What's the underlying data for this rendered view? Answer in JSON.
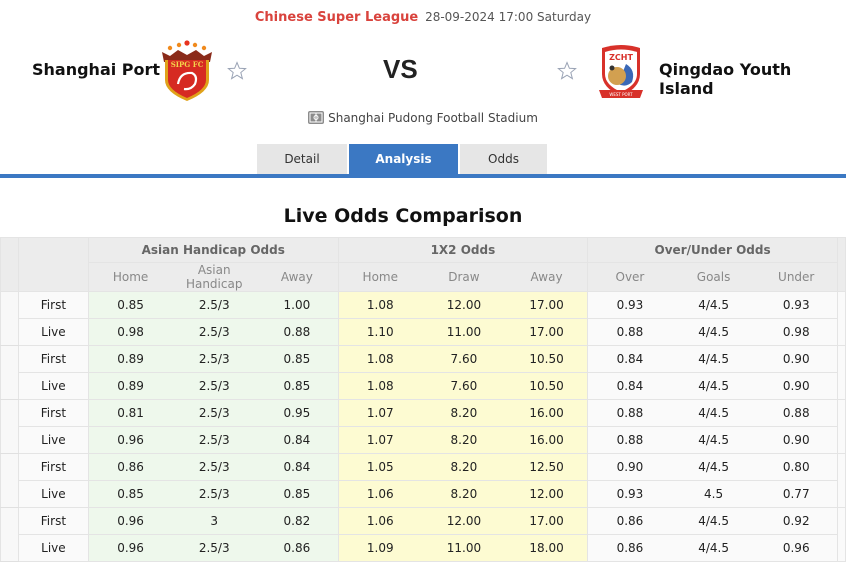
{
  "header": {
    "league": "Chinese Super League",
    "datetime": "28-09-2024 17:00 Saturday",
    "vs": "VS",
    "home_team": "Shanghai Port",
    "away_team": "Qingdao Youth Island",
    "home_logo": "shanghai-port-crest",
    "away_logo": "qingdao-youth-island-crest",
    "favorite_icon": "star-outline-icon",
    "venue_icon": "stadium-icon",
    "venue": "Shanghai Pudong Football Stadium"
  },
  "tabs": [
    {
      "label": "Detail",
      "active": false
    },
    {
      "label": "Analysis",
      "active": true
    },
    {
      "label": "Odds",
      "active": false
    }
  ],
  "colors": {
    "accent": "#3b78c3",
    "league": "#d9433d",
    "handicap_bg": "#eef8ec",
    "x12_bg": "#fdfbd2"
  },
  "odds": {
    "title": "Live Odds Comparison",
    "groups": [
      "Asian Handicap Odds",
      "1X2 Odds",
      "Over/Under Odds"
    ],
    "subheaders": {
      "ah": [
        "Home",
        "Asian Handicap",
        "Away"
      ],
      "x12": [
        "Home",
        "Draw",
        "Away"
      ],
      "ou": [
        "Over",
        "Goals",
        "Under"
      ]
    },
    "rows": [
      {
        "type": "First",
        "ah": [
          "0.85",
          "2.5/3",
          "1.00"
        ],
        "x12": [
          "1.08",
          "12.00",
          "17.00"
        ],
        "ou": [
          "0.93",
          "4/4.5",
          "0.93"
        ]
      },
      {
        "type": "Live",
        "ah": [
          "0.98",
          "2.5/3",
          "0.88"
        ],
        "x12": [
          "1.10",
          "11.00",
          "17.00"
        ],
        "ou": [
          "0.88",
          "4/4.5",
          "0.98"
        ]
      },
      {
        "type": "First",
        "ah": [
          "0.89",
          "2.5/3",
          "0.85"
        ],
        "x12": [
          "1.08",
          "7.60",
          "10.50"
        ],
        "ou": [
          "0.84",
          "4/4.5",
          "0.90"
        ]
      },
      {
        "type": "Live",
        "ah": [
          "0.89",
          "2.5/3",
          "0.85"
        ],
        "x12": [
          "1.08",
          "7.60",
          "10.50"
        ],
        "ou": [
          "0.84",
          "4/4.5",
          "0.90"
        ]
      },
      {
        "type": "First",
        "ah": [
          "0.81",
          "2.5/3",
          "0.95"
        ],
        "x12": [
          "1.07",
          "8.20",
          "16.00"
        ],
        "ou": [
          "0.88",
          "4/4.5",
          "0.88"
        ]
      },
      {
        "type": "Live",
        "ah": [
          "0.96",
          "2.5/3",
          "0.84"
        ],
        "x12": [
          "1.07",
          "8.20",
          "16.00"
        ],
        "ou": [
          "0.88",
          "4/4.5",
          "0.90"
        ]
      },
      {
        "type": "First",
        "ah": [
          "0.86",
          "2.5/3",
          "0.84"
        ],
        "x12": [
          "1.05",
          "8.20",
          "12.50"
        ],
        "ou": [
          "0.90",
          "4/4.5",
          "0.80"
        ]
      },
      {
        "type": "Live",
        "ah": [
          "0.85",
          "2.5/3",
          "0.85"
        ],
        "x12": [
          "1.06",
          "8.20",
          "12.00"
        ],
        "ou": [
          "0.93",
          "4.5",
          "0.77"
        ]
      },
      {
        "type": "First",
        "ah": [
          "0.96",
          "3",
          "0.82"
        ],
        "x12": [
          "1.06",
          "12.00",
          "17.00"
        ],
        "ou": [
          "0.86",
          "4/4.5",
          "0.92"
        ]
      },
      {
        "type": "Live",
        "ah": [
          "0.96",
          "2.5/3",
          "0.86"
        ],
        "x12": [
          "1.09",
          "11.00",
          "18.00"
        ],
        "ou": [
          "0.86",
          "4/4.5",
          "0.96"
        ]
      }
    ]
  }
}
